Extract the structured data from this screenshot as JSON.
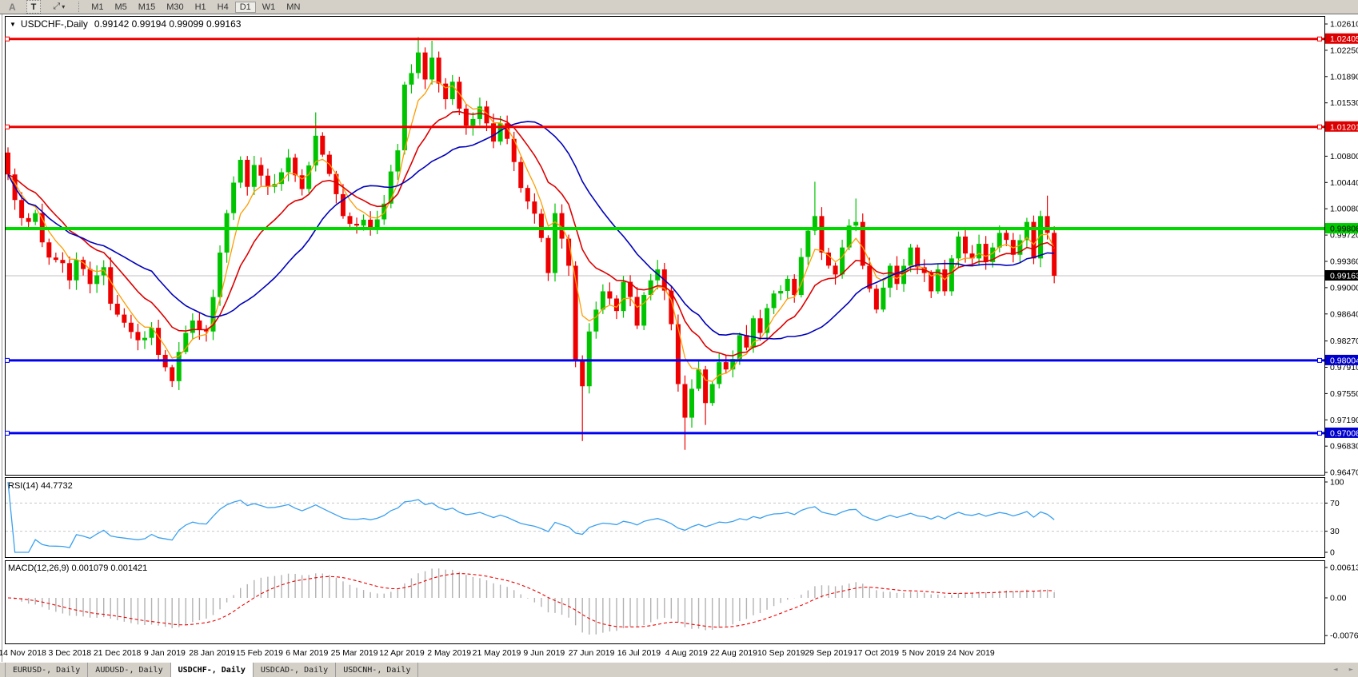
{
  "toolbar": {
    "buttons": [
      {
        "label": "A"
      },
      {
        "label": "T"
      }
    ],
    "cursor_tool_glyph": "⤢",
    "dropdown_glyph": "▾",
    "timeframes": [
      "M1",
      "M5",
      "M15",
      "M30",
      "H1",
      "H4",
      "D1",
      "W1",
      "MN"
    ],
    "active_timeframe": "D1"
  },
  "chart_window": {
    "dropdown_glyph": "▼",
    "title_symbol": "USDCHF-,Daily",
    "ohlc_text": "0.99142 0.99194 0.99099 0.99163"
  },
  "indicators": {
    "rsi_label": "RSI(14) 44.7732",
    "macd_label": "MACD(12,26,9) 0.001079 0.001421"
  },
  "price_axis": {
    "ticks": [
      1.0261,
      1.0225,
      1.0189,
      1.0153,
      1.008,
      1.0044,
      1.0008,
      0.9972,
      0.9936,
      0.99,
      0.9864,
      0.9827,
      0.9791,
      0.9755,
      0.9719,
      0.9683,
      0.9647
    ]
  },
  "rsi_axis": {
    "ticks": [
      100,
      70,
      30,
      0
    ],
    "dashed_levels": [
      70,
      30
    ]
  },
  "macd_axis": {
    "ticks": [
      {
        "v": 0.00613,
        "label": "0.00613"
      },
      {
        "v": 0,
        "label": "0.00"
      },
      {
        "v": -0.00761,
        "label": "-0.00761"
      }
    ]
  },
  "date_axis": {
    "labels": [
      "14 Nov 2018",
      "3 Dec 2018",
      "21 Dec 2018",
      "9 Jan 2019",
      "28 Jan 2019",
      "15 Feb 2019",
      "6 Mar 2019",
      "25 Mar 2019",
      "12 Apr 2019",
      "2 May 2019",
      "21 May 2019",
      "9 Jun 2019",
      "27 Jun 2019",
      "16 Jul 2019",
      "4 Aug 2019",
      "22 Aug 2019",
      "10 Sep 2019",
      "29 Sep 2019",
      "17 Oct 2019",
      "5 Nov 2019",
      "24 Nov 2019"
    ]
  },
  "tabs": [
    {
      "label": "EURUSD-, Daily",
      "active": false
    },
    {
      "label": "AUDUSD-, Daily",
      "active": false
    },
    {
      "label": "USDCHF-, Daily",
      "active": true
    },
    {
      "label": "USDCAD-, Daily",
      "active": false
    },
    {
      "label": "USDCNH-, Daily",
      "active": false
    }
  ],
  "nav_arrows": {
    "left": "◄",
    "right": "►"
  },
  "chart_data": {
    "type": "candlestick",
    "symbol": "USDCHF-",
    "timeframe": "Daily",
    "ohlc_current": {
      "open": 0.99142,
      "high": 0.99194,
      "low": 0.99099,
      "close": 0.99163
    },
    "bars": 154,
    "colors": {
      "bull": "#00c400",
      "bear": "#ee0000",
      "ma_fast": "#ff9c00",
      "ma_mid": "#dd0000",
      "ma_slow": "#0000bb",
      "rsi_line": "#3aa0f0",
      "macd_hist": "#b2b2b2",
      "macd_signal": "#ee0000",
      "current_price_line": "#c0c0c0"
    },
    "close_anchors": [
      [
        0,
        1.0055
      ],
      [
        1,
        1.002
      ],
      [
        3,
        0.999
      ],
      [
        4,
        1.0002
      ],
      [
        5,
        0.9962
      ],
      [
        7,
        0.9938
      ],
      [
        9,
        0.991
      ],
      [
        10,
        0.9938
      ],
      [
        12,
        0.9905
      ],
      [
        14,
        0.9928
      ],
      [
        15,
        0.9878
      ],
      [
        17,
        0.9852
      ],
      [
        19,
        0.9828
      ],
      [
        21,
        0.9845
      ],
      [
        22,
        0.9808
      ],
      [
        24,
        0.9772
      ],
      [
        25,
        0.9812
      ],
      [
        27,
        0.9855
      ],
      [
        29,
        0.984
      ],
      [
        31,
        0.9948
      ],
      [
        32,
        1.0002
      ],
      [
        34,
        1.0075
      ],
      [
        35,
        1.0038
      ],
      [
        36,
        1.0068
      ],
      [
        38,
        1.0038
      ],
      [
        40,
        1.0058
      ],
      [
        41,
        1.0078
      ],
      [
        43,
        1.0035
      ],
      [
        45,
        1.0108
      ],
      [
        46,
        1.0082
      ],
      [
        48,
        1.0028
      ],
      [
        49,
        0.9998
      ],
      [
        51,
        0.9985
      ],
      [
        53,
        0.9982
      ],
      [
        55,
        1.0015
      ],
      [
        57,
        1.0088
      ],
      [
        58,
        1.0178
      ],
      [
        60,
        1.0222
      ],
      [
        61,
        1.0185
      ],
      [
        62,
        1.0215
      ],
      [
        64,
        1.0158
      ],
      [
        65,
        1.0182
      ],
      [
        67,
        1.0122
      ],
      [
        69,
        1.0148
      ],
      [
        71,
        1.01
      ],
      [
        72,
        1.0125
      ],
      [
        74,
        1.0072
      ],
      [
        76,
        1.0018
      ],
      [
        78,
        0.9968
      ],
      [
        79,
        0.992
      ],
      [
        80,
        1.0002
      ],
      [
        82,
        0.993
      ],
      [
        83,
        0.98
      ],
      [
        84,
        0.9765
      ],
      [
        85,
        0.984
      ],
      [
        87,
        0.9895
      ],
      [
        89,
        0.9868
      ],
      [
        90,
        0.9908
      ],
      [
        92,
        0.9848
      ],
      [
        93,
        0.989
      ],
      [
        95,
        0.9925
      ],
      [
        97,
        0.985
      ],
      [
        98,
        0.9768
      ],
      [
        99,
        0.9722
      ],
      [
        101,
        0.9788
      ],
      [
        102,
        0.9742
      ],
      [
        103,
        0.9768
      ],
      [
        104,
        0.9798
      ],
      [
        105,
        0.9788
      ],
      [
        107,
        0.9835
      ],
      [
        108,
        0.9818
      ],
      [
        109,
        0.9858
      ],
      [
        110,
        0.9838
      ],
      [
        111,
        0.9872
      ],
      [
        112,
        0.9892
      ],
      [
        114,
        0.9912
      ],
      [
        115,
        0.989
      ],
      [
        116,
        0.9942
      ],
      [
        117,
        0.9978
      ],
      [
        118,
        0.9998
      ],
      [
        119,
        0.9948
      ],
      [
        121,
        0.9918
      ],
      [
        122,
        0.9955
      ],
      [
        123,
        0.9985
      ],
      [
        124,
        0.999
      ],
      [
        125,
        0.993
      ],
      [
        127,
        0.987
      ],
      [
        128,
        0.99
      ],
      [
        129,
        0.993
      ],
      [
        130,
        0.9905
      ],
      [
        131,
        0.993
      ],
      [
        132,
        0.9955
      ],
      [
        134,
        0.992
      ],
      [
        135,
        0.9895
      ],
      [
        136,
        0.9925
      ],
      [
        137,
        0.9895
      ],
      [
        138,
        0.994
      ],
      [
        139,
        0.997
      ],
      [
        141,
        0.994
      ],
      [
        142,
        0.996
      ],
      [
        143,
        0.9935
      ],
      [
        144,
        0.9955
      ],
      [
        145,
        0.9975
      ],
      [
        147,
        0.9945
      ],
      [
        148,
        0.9965
      ],
      [
        149,
        0.999
      ],
      [
        150,
        0.994
      ],
      [
        151,
        0.9998
      ],
      [
        152,
        0.9975
      ],
      [
        153,
        0.99163
      ]
    ],
    "wick_overrides": [
      {
        "bar": 0,
        "high": 1.0092
      },
      {
        "bar": 24,
        "low": 0.9764
      },
      {
        "bar": 45,
        "high": 1.014
      },
      {
        "bar": 60,
        "high": 1.0243
      },
      {
        "bar": 62,
        "high": 1.0238
      },
      {
        "bar": 84,
        "low": 0.969
      },
      {
        "bar": 99,
        "low": 0.9678
      },
      {
        "bar": 102,
        "low": 0.9712
      },
      {
        "bar": 118,
        "high": 1.0045
      },
      {
        "bar": 124,
        "high": 1.0022
      },
      {
        "bar": 152,
        "high": 1.0026
      },
      {
        "bar": 153,
        "low": 0.9906
      }
    ],
    "h_lines": [
      {
        "price": 1.02405,
        "label": "1.02405",
        "color": "#ee0000",
        "lineWidth": 3,
        "labelBg": "#dd0000",
        "labelColor": "#ffffff",
        "handles": true
      },
      {
        "price": 1.01201,
        "label": "1.01201",
        "color": "#ee0000",
        "lineWidth": 3,
        "labelBg": "#dd0000",
        "labelColor": "#ffffff",
        "handles": true
      },
      {
        "price": 0.99808,
        "label": "0.99808",
        "color": "#00d800",
        "lineWidth": 4,
        "labelBg": "#00cc00",
        "labelColor": "#000000",
        "handles": false
      },
      {
        "price": 0.98004,
        "label": "0.98004",
        "color": "#0000ee",
        "lineWidth": 3,
        "labelBg": "#0000cc",
        "labelColor": "#ffffff",
        "handles": true
      },
      {
        "price": 0.97008,
        "label": "0.97008",
        "color": "#0000ee",
        "lineWidth": 3,
        "labelBg": "#0000cc",
        "labelColor": "#ffffff",
        "handles": true
      }
    ],
    "current_price": {
      "value": 0.99163,
      "label": "0.99163",
      "labelBg": "#000000",
      "labelColor": "#ffffff"
    },
    "moving_averages": [
      {
        "name": "fast",
        "type": "ema",
        "period": 5,
        "color": "#ff9c00",
        "width": 1.3
      },
      {
        "name": "mid",
        "type": "ema",
        "period": 13,
        "color": "#dd0000",
        "width": 1.6
      },
      {
        "name": "slow",
        "type": "sma",
        "period": 22,
        "color": "#0000bb",
        "width": 1.6
      }
    ],
    "rsi": {
      "period": 14,
      "last_value": 44.7732
    },
    "macd": {
      "fast": 12,
      "slow": 26,
      "signal": 9,
      "main_last": 0.001079,
      "signal_last": 0.001421
    }
  }
}
